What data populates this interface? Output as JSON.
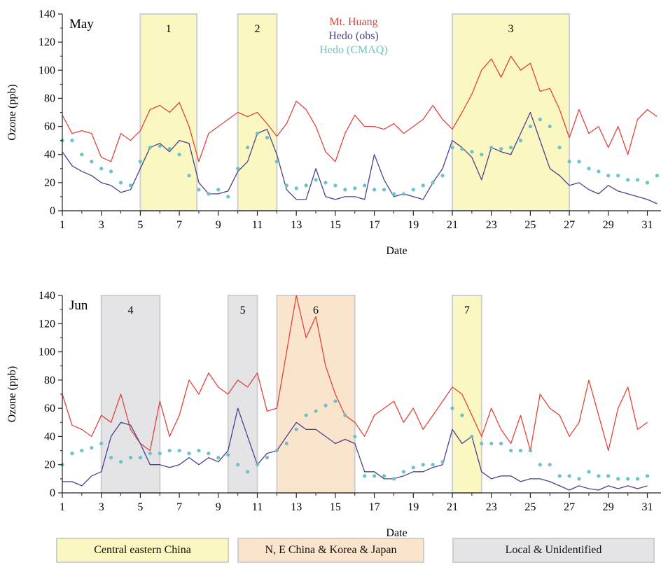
{
  "chart_data": [
    {
      "type": "line",
      "panel_label": "May",
      "xlabel": "Date",
      "ylabel": "Ozone (ppb)",
      "ylim": [
        0,
        140
      ],
      "xlim": [
        1,
        31.7
      ],
      "x_ticks": [
        1,
        3,
        5,
        7,
        9,
        11,
        13,
        15,
        17,
        19,
        21,
        23,
        25,
        27,
        29,
        31
      ],
      "y_ticks": [
        0,
        20,
        40,
        60,
        80,
        100,
        120,
        140
      ],
      "legend_position": "top-center",
      "episodes": [
        {
          "label": "1",
          "start": 5.0,
          "end": 7.9,
          "category": "central"
        },
        {
          "label": "2",
          "start": 10.0,
          "end": 12.0,
          "category": "central"
        },
        {
          "label": "3",
          "start": 21.0,
          "end": 27.0,
          "category": "central"
        }
      ],
      "series": [
        {
          "name": "Mt. Huang",
          "color": "#e0443a",
          "style": "line",
          "x": [
            1,
            1.5,
            2,
            2.5,
            3,
            3.5,
            4,
            4.5,
            5,
            5.5,
            6,
            6.5,
            7,
            7.5,
            8,
            8.5,
            9,
            9.5,
            10,
            10.5,
            11,
            11.5,
            12,
            12.5,
            13,
            13.5,
            14,
            14.5,
            15,
            15.5,
            16,
            16.5,
            17,
            17.5,
            18,
            18.5,
            19,
            19.5,
            20,
            20.5,
            21,
            21.5,
            22,
            22.5,
            23,
            23.5,
            24,
            24.5,
            25,
            25.5,
            26,
            26.5,
            27,
            27.5,
            28,
            28.5,
            29,
            29.5,
            30,
            30.5,
            31,
            31.5
          ],
          "y": [
            68,
            55,
            57,
            55,
            38,
            35,
            55,
            50,
            57,
            72,
            75,
            70,
            77,
            60,
            35,
            55,
            60,
            65,
            70,
            67,
            70,
            62,
            53,
            62,
            78,
            72,
            60,
            42,
            35,
            55,
            68,
            60,
            60,
            58,
            62,
            55,
            60,
            65,
            75,
            65,
            58,
            70,
            83,
            100,
            108,
            95,
            110,
            100,
            105,
            85,
            87,
            72,
            52,
            72,
            55,
            60,
            45,
            60,
            40,
            65,
            72,
            67
          ]
        },
        {
          "name": "Hedo (obs)",
          "color": "#4d3f8f",
          "style": "line",
          "x": [
            1,
            1.5,
            2,
            2.5,
            3,
            3.5,
            4,
            4.5,
            5,
            5.5,
            6,
            6.5,
            7,
            7.5,
            8,
            8.5,
            9,
            9.5,
            10,
            10.5,
            11,
            11.5,
            12,
            12.5,
            13,
            13.5,
            14,
            14.5,
            15,
            15.5,
            16,
            16.5,
            17,
            17.5,
            18,
            18.5,
            19,
            19.5,
            20,
            20.5,
            21,
            21.5,
            22,
            22.5,
            23,
            23.5,
            24,
            24.5,
            25,
            25.5,
            26,
            26.5,
            27,
            27.5,
            28,
            28.5,
            29,
            29.5,
            30,
            30.5,
            31,
            31.5
          ],
          "y": [
            42,
            32,
            28,
            25,
            20,
            18,
            13,
            15,
            30,
            45,
            48,
            42,
            50,
            48,
            20,
            12,
            12,
            14,
            28,
            35,
            55,
            58,
            40,
            15,
            8,
            8,
            30,
            10,
            8,
            10,
            10,
            8,
            40,
            22,
            10,
            12,
            10,
            8,
            20,
            30,
            50,
            45,
            38,
            22,
            45,
            42,
            40,
            55,
            70,
            50,
            30,
            25,
            18,
            20,
            15,
            12,
            18,
            14,
            12,
            10,
            8,
            5
          ]
        },
        {
          "name": "Hedo (CMAQ)",
          "color": "#6cc2c9",
          "style": "dots",
          "x": [
            1,
            1.5,
            2,
            2.5,
            3,
            3.5,
            4,
            4.5,
            5,
            5.5,
            6,
            6.5,
            7,
            7.5,
            8,
            8.5,
            9,
            9.5,
            10,
            10.5,
            11,
            11.5,
            12,
            12.5,
            13,
            13.5,
            14,
            14.5,
            15,
            15.5,
            16,
            16.5,
            17,
            17.5,
            18,
            18.5,
            19,
            19.5,
            20,
            20.5,
            21,
            21.5,
            22,
            22.5,
            23,
            23.5,
            24,
            24.5,
            25,
            25.5,
            26,
            26.5,
            27,
            27.5,
            28,
            28.5,
            29,
            29.5,
            30,
            30.5,
            31,
            31.5
          ],
          "y": [
            50,
            50,
            40,
            35,
            30,
            28,
            20,
            18,
            35,
            45,
            46,
            44,
            40,
            25,
            15,
            12,
            15,
            10,
            30,
            45,
            55,
            52,
            35,
            18,
            16,
            18,
            22,
            20,
            18,
            15,
            16,
            18,
            15,
            15,
            12,
            12,
            15,
            18,
            20,
            25,
            45,
            44,
            42,
            40,
            45,
            44,
            45,
            50,
            60,
            65,
            60,
            45,
            35,
            35,
            30,
            28,
            25,
            25,
            22,
            22,
            20,
            25
          ]
        }
      ]
    },
    {
      "type": "line",
      "panel_label": "Jun",
      "xlabel": "Date",
      "ylabel": "Ozone (ppb)",
      "ylim": [
        0,
        140
      ],
      "xlim": [
        1,
        31.7
      ],
      "x_ticks": [
        1,
        3,
        5,
        7,
        9,
        11,
        13,
        15,
        17,
        19,
        21,
        23,
        25,
        27,
        29,
        31
      ],
      "y_ticks": [
        0,
        20,
        40,
        60,
        80,
        100,
        120,
        140
      ],
      "episodes": [
        {
          "label": "4",
          "start": 3.0,
          "end": 6.0,
          "category": "local"
        },
        {
          "label": "5",
          "start": 9.5,
          "end": 11.0,
          "category": "local"
        },
        {
          "label": "6",
          "start": 12.0,
          "end": 16.0,
          "category": "korea"
        },
        {
          "label": "7",
          "start": 21.0,
          "end": 22.5,
          "category": "central"
        }
      ],
      "series": [
        {
          "name": "Mt. Huang",
          "color": "#e0443a",
          "style": "line",
          "x": [
            1,
            1.5,
            2,
            2.5,
            3,
            3.5,
            4,
            4.5,
            5,
            5.5,
            6,
            6.5,
            7,
            7.5,
            8,
            8.5,
            9,
            9.5,
            10,
            10.5,
            11,
            11.5,
            12,
            12.5,
            13,
            13.5,
            14,
            14.5,
            15,
            15.5,
            16,
            16.5,
            17,
            17.5,
            18,
            18.5,
            19,
            19.5,
            20,
            20.5,
            21,
            21.5,
            22,
            22.5,
            23,
            23.5,
            24,
            24.5,
            25,
            25.5,
            26,
            26.5,
            27,
            27.5,
            28,
            28.5,
            29,
            29.5,
            30,
            30.5,
            31
          ],
          "y": [
            70,
            48,
            45,
            40,
            55,
            50,
            70,
            45,
            35,
            30,
            65,
            40,
            55,
            80,
            70,
            85,
            75,
            70,
            80,
            75,
            85,
            58,
            60,
            100,
            140,
            110,
            125,
            90,
            70,
            55,
            50,
            40,
            55,
            60,
            65,
            50,
            60,
            45,
            55,
            65,
            75,
            70,
            55,
            40,
            60,
            45,
            35,
            55,
            30,
            70,
            60,
            55,
            40,
            50,
            80,
            55,
            30,
            60,
            75,
            45,
            50
          ]
        },
        {
          "name": "Hedo (obs)",
          "color": "#4d3f8f",
          "style": "line",
          "x": [
            1,
            1.5,
            2,
            2.5,
            3,
            3.5,
            4,
            4.5,
            5,
            5.5,
            6,
            6.5,
            7,
            7.5,
            8,
            8.5,
            9,
            9.5,
            10,
            10.5,
            11,
            11.5,
            12,
            12.5,
            13,
            13.5,
            14,
            14.5,
            15,
            15.5,
            16,
            16.5,
            17,
            17.5,
            18,
            18.5,
            19,
            19.5,
            20,
            20.5,
            21,
            21.5,
            22,
            22.5,
            23,
            23.5,
            24,
            24.5,
            25,
            25.5,
            26,
            26.5,
            27,
            27.5,
            28,
            28.5,
            29,
            29.5,
            30,
            30.5,
            31
          ],
          "y": [
            8,
            8,
            5,
            12,
            15,
            40,
            50,
            48,
            35,
            20,
            20,
            18,
            20,
            25,
            20,
            25,
            22,
            30,
            60,
            40,
            20,
            28,
            30,
            40,
            50,
            45,
            45,
            40,
            35,
            38,
            35,
            15,
            15,
            10,
            10,
            12,
            15,
            15,
            18,
            20,
            45,
            35,
            40,
            15,
            10,
            12,
            12,
            8,
            10,
            10,
            8,
            5,
            2,
            5,
            3,
            2,
            5,
            3,
            5,
            3,
            5
          ]
        },
        {
          "name": "Hedo (CMAQ)",
          "color": "#6cc2c9",
          "style": "dots",
          "x": [
            1,
            1.5,
            2,
            2.5,
            3,
            3.5,
            4,
            4.5,
            5,
            5.5,
            6,
            6.5,
            7,
            7.5,
            8,
            8.5,
            9,
            9.5,
            10,
            10.5,
            11,
            11.5,
            12,
            12.5,
            13,
            13.5,
            14,
            14.5,
            15,
            15.5,
            16,
            16.5,
            17,
            17.5,
            18,
            18.5,
            19,
            19.5,
            20,
            20.5,
            21,
            21.5,
            22,
            22.5,
            23,
            23.5,
            24,
            24.5,
            25,
            25.5,
            26,
            26.5,
            27,
            27.5,
            28,
            28.5,
            29,
            29.5,
            30,
            30.5,
            31
          ],
          "y": [
            20,
            28,
            30,
            32,
            35,
            25,
            22,
            25,
            25,
            28,
            28,
            30,
            30,
            28,
            30,
            28,
            25,
            27,
            20,
            15,
            20,
            25,
            30,
            35,
            45,
            55,
            58,
            62,
            65,
            55,
            40,
            12,
            12,
            12,
            10,
            15,
            18,
            20,
            20,
            22,
            60,
            55,
            40,
            35,
            35,
            35,
            30,
            30,
            30,
            20,
            20,
            12,
            12,
            10,
            15,
            12,
            12,
            10,
            10,
            10,
            12
          ]
        }
      ]
    }
  ],
  "legend_categories": [
    {
      "key": "central",
      "label": "Central eastern China",
      "color": "#fbf7c0"
    },
    {
      "key": "korea",
      "label": "N, E China & Korea & Japan",
      "color": "#fbe4cc"
    },
    {
      "key": "local",
      "label": "Local & Unidentified",
      "color": "#e4e3e6"
    }
  ],
  "colors": {
    "box_border": "#cfcfcf",
    "axis": "#222222"
  }
}
